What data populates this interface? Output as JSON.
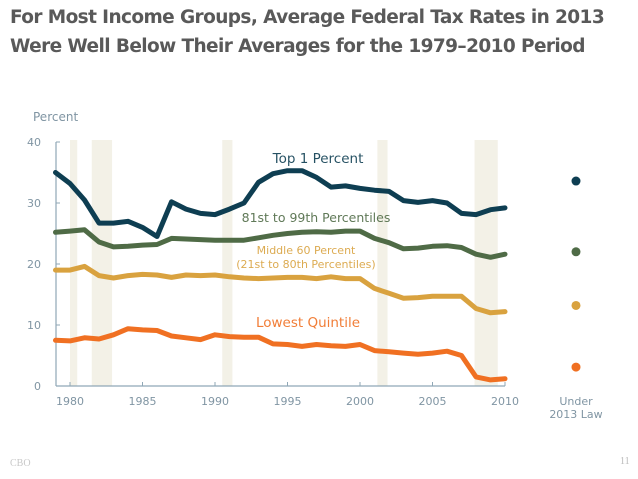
{
  "slide": {
    "title_line1": "For Most Income Groups, Average Federal Tax Rates in 2013",
    "title_line2": "Were Well Below Their Averages for the 1979–2010 Period",
    "footer_source": "CBO",
    "page_number": "11"
  },
  "chart_data": {
    "type": "line",
    "title": "For Most Income Groups, Average Federal Tax Rates in 2013 Were Well Below Their Averages for the 1979–2010 Period",
    "ylabel": "Percent",
    "xlabel": "",
    "ylim": [
      0,
      40
    ],
    "xlim": [
      1979,
      2010
    ],
    "yticks": [
      "0",
      "10",
      "20",
      "30",
      "40"
    ],
    "xticks": [
      "1980",
      "1985",
      "1990",
      "1995",
      "2000",
      "2005",
      "2010"
    ],
    "grid": false,
    "x": [
      1979,
      1980,
      1981,
      1982,
      1983,
      1984,
      1985,
      1986,
      1987,
      1988,
      1989,
      1990,
      1991,
      1992,
      1993,
      1994,
      1995,
      1996,
      1997,
      1998,
      1999,
      2000,
      2001,
      2002,
      2003,
      2004,
      2005,
      2006,
      2007,
      2008,
      2009,
      2010
    ],
    "recession_bands": [
      [
        1980.0,
        1980.5
      ],
      [
        1981.5,
        1982.9
      ],
      [
        1990.5,
        1991.2
      ],
      [
        2001.2,
        2001.9
      ],
      [
        2007.9,
        2009.5
      ]
    ],
    "series": [
      {
        "name": "Top 1 Percent",
        "label_lines": [
          "Top 1 Percent"
        ],
        "color": "#0e3e52",
        "values": [
          35.0,
          33.2,
          30.5,
          26.7,
          26.7,
          27.0,
          26.0,
          24.5,
          30.2,
          29.0,
          28.3,
          28.1,
          29.0,
          30.0,
          33.4,
          34.8,
          35.3,
          35.3,
          34.2,
          32.6,
          32.8,
          32.4,
          32.1,
          31.9,
          30.4,
          30.1,
          30.4,
          30.0,
          28.3,
          28.1,
          28.9,
          29.2
        ],
        "under_2013_law": 33.6
      },
      {
        "name": "81st to 99th Percentiles",
        "label_lines": [
          "81st to 99th Percentiles"
        ],
        "color": "#4f6b46",
        "values": [
          25.2,
          25.4,
          25.6,
          23.6,
          22.8,
          22.9,
          23.1,
          23.2,
          24.2,
          24.1,
          24.0,
          23.9,
          23.9,
          23.9,
          24.3,
          24.7,
          25.0,
          25.2,
          25.3,
          25.2,
          25.4,
          25.4,
          24.2,
          23.5,
          22.5,
          22.6,
          22.9,
          23.0,
          22.7,
          21.6,
          21.1,
          21.6
        ],
        "under_2013_law": 22.0
      },
      {
        "name": "Middle 60 Percent (21st to 80th Percentiles)",
        "label_lines": [
          "Middle 60 Percent",
          "(21st to 80th Percentiles)"
        ],
        "color": "#d9a23f",
        "values": [
          19.0,
          19.0,
          19.6,
          18.1,
          17.7,
          18.1,
          18.3,
          18.2,
          17.8,
          18.2,
          18.1,
          18.2,
          17.9,
          17.7,
          17.6,
          17.7,
          17.8,
          17.8,
          17.6,
          17.9,
          17.6,
          17.6,
          16.0,
          15.2,
          14.4,
          14.5,
          14.7,
          14.7,
          14.7,
          12.7,
          12.0,
          12.2
        ],
        "under_2013_law": 13.2
      },
      {
        "name": "Lowest Quintile",
        "label_lines": [
          "Lowest Quintile"
        ],
        "color": "#f07022",
        "values": [
          7.5,
          7.4,
          7.9,
          7.7,
          8.4,
          9.4,
          9.2,
          9.1,
          8.2,
          7.9,
          7.6,
          8.4,
          8.1,
          8.0,
          8.0,
          6.9,
          6.8,
          6.5,
          6.8,
          6.6,
          6.5,
          6.8,
          5.8,
          5.6,
          5.4,
          5.2,
          5.4,
          5.7,
          5.0,
          1.5,
          1.0,
          1.2
        ],
        "under_2013_law": 3.1
      }
    ],
    "under_2013_label_lines": [
      "Under",
      "2013 Law"
    ],
    "axis_color": "#8fa7b6",
    "band_color": "#f3f1e7"
  }
}
